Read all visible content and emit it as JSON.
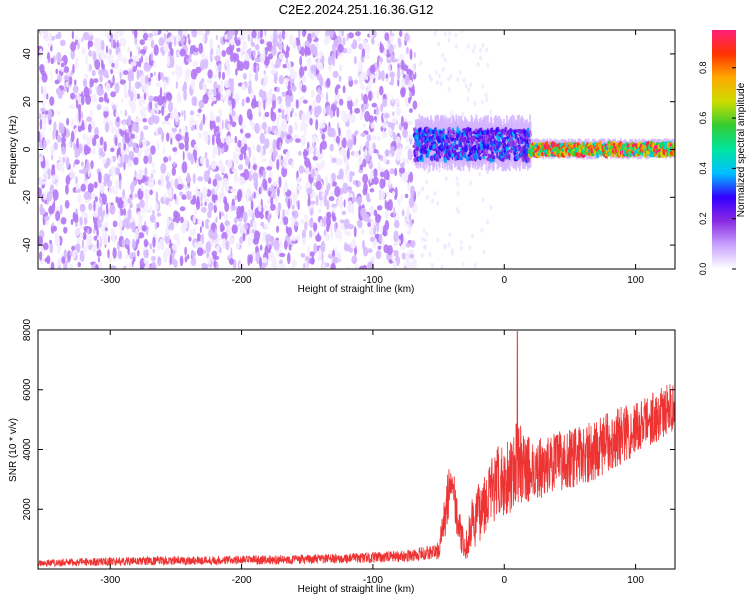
{
  "title": "C2E2.2024.251.16.36.G12",
  "chart_data": [
    {
      "type": "heatmap",
      "xlabel": "Height of straight line (km)",
      "ylabel": "Frequency (Hz)",
      "xlim": [
        -355,
        130
      ],
      "ylim": [
        -50,
        50
      ],
      "x_ticks": [
        -300,
        -200,
        -100,
        0,
        100
      ],
      "y_ticks": [
        -40,
        -20,
        0,
        20,
        40
      ],
      "colorbar": {
        "label": "Normalized spectral amplitude",
        "range": [
          0,
          0.95
        ],
        "ticks": [
          0.0,
          0.2,
          0.4,
          0.6,
          0.8
        ],
        "colors": [
          "#ffffff",
          "#c9a3ff",
          "#8a2be2",
          "#3300ff",
          "#00bfff",
          "#00e5a0",
          "#33cc33",
          "#ccdd00",
          "#ffaa00",
          "#ff3300",
          "#ff1f7a"
        ]
      },
      "regions": [
        {
          "x_range": [
            -355,
            -68
          ],
          "freq_range": [
            -50,
            50
          ],
          "pattern": "broadband noise",
          "typical_amplitude": 0.08
        },
        {
          "x_range": [
            -68,
            20
          ],
          "freq_center": 2,
          "freq_halfwidth": 8,
          "pattern": "narrowband signal",
          "typical_amplitude": 0.3
        },
        {
          "x_range": [
            20,
            130
          ],
          "freq_center": 0,
          "freq_halfwidth": 3,
          "pattern": "narrowband signal",
          "typical_amplitude": 0.75
        }
      ]
    },
    {
      "type": "line",
      "xlabel": "Height of straight line (km)",
      "ylabel": "SNR (10 * v/v)",
      "xlim": [
        -355,
        130
      ],
      "ylim": [
        0,
        8000
      ],
      "x_ticks": [
        -300,
        -200,
        -100,
        0,
        100
      ],
      "y_ticks": [
        2000,
        4000,
        6000,
        8000
      ],
      "color": "#ee3333",
      "series": [
        {
          "x": [
            -355,
            -300,
            -250,
            -200,
            -150,
            -100,
            -70,
            -50,
            -45,
            -40,
            -35,
            -30,
            -25,
            -20,
            -15,
            -10,
            -5,
            0,
            5,
            10,
            15,
            20,
            30,
            40,
            50,
            60,
            70,
            80,
            90,
            100,
            110,
            120,
            130
          ],
          "y": [
            200,
            250,
            280,
            300,
            320,
            380,
            450,
            600,
            1800,
            3200,
            1500,
            600,
            1400,
            1800,
            2300,
            2600,
            2800,
            3000,
            3200,
            3600,
            3400,
            3300,
            3400,
            3600,
            3700,
            3800,
            4000,
            4300,
            4500,
            4700,
            5000,
            5200,
            5500
          ],
          "noise": [
            120,
            140,
            150,
            150,
            160,
            180,
            200,
            300,
            800,
            900,
            700,
            400,
            900,
            1000,
            1100,
            1200,
            1300,
            1300,
            1300,
            1400,
            1200,
            1100,
            1000,
            1000,
            1000,
            1000,
            1000,
            1000,
            1000,
            900,
            900,
            900,
            800
          ],
          "peak": {
            "x": 10,
            "y": 7950
          }
        }
      ]
    }
  ]
}
